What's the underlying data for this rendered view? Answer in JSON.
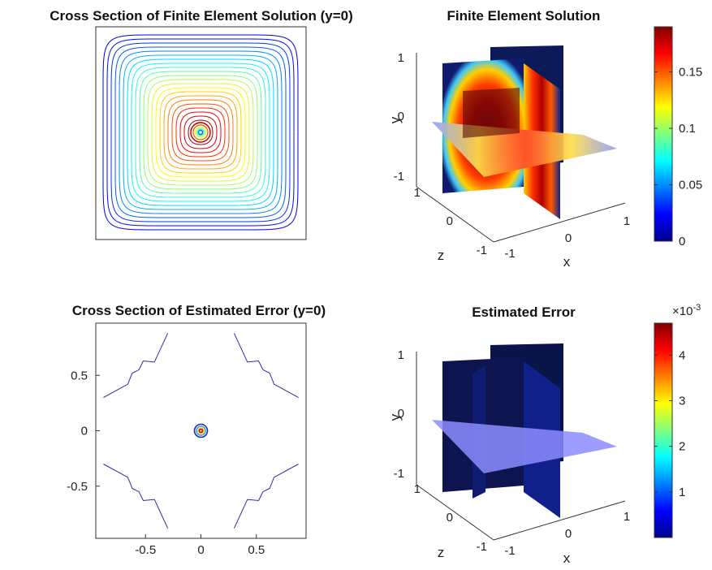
{
  "chart_data": [
    {
      "type": "contour",
      "title": "Cross Section of Finite Element Solution (y=0)",
      "axes_visible": false,
      "box": true,
      "center": [
        0,
        0
      ],
      "n_levels": 22,
      "colormap": "jet"
    },
    {
      "type": "slice3d",
      "title": "Finite Element Solution",
      "xlabel": "x",
      "ylabel": "y",
      "zlabel": "z",
      "x_ticks": [
        "-1",
        "0",
        "1"
      ],
      "y_ticks": [
        "-1",
        "0",
        "1"
      ],
      "z_ticks": [
        "-1",
        "0",
        "1"
      ],
      "colorbar": {
        "ticks": [
          "0",
          "0.05",
          "0.1",
          "0.15"
        ],
        "range": [
          0,
          0.19
        ]
      },
      "colormap": "jet"
    },
    {
      "type": "contour",
      "title": "Cross Section of Estimated Error (y=0)",
      "xlim": [
        -0.95,
        0.95
      ],
      "ylim": [
        -0.95,
        0.95
      ],
      "x_ticks": [
        "-0.5",
        "0",
        "0.5"
      ],
      "y_ticks": [
        "0.5",
        "0",
        "-0.5"
      ],
      "colormap": "jet"
    },
    {
      "type": "slice3d",
      "title": "Estimated Error",
      "xlabel": "x",
      "ylabel": "y",
      "zlabel": "z",
      "x_ticks": [
        "-1",
        "0",
        "1"
      ],
      "y_ticks": [
        "-1",
        "0",
        "1"
      ],
      "z_ticks": [
        "-1",
        "0",
        "1"
      ],
      "colorbar": {
        "ticks": [
          "1",
          "2",
          "3",
          "4"
        ],
        "range": [
          0,
          4.7
        ],
        "exponent_label": "×10",
        "exponent": "-3"
      },
      "colormap": "jet"
    }
  ]
}
